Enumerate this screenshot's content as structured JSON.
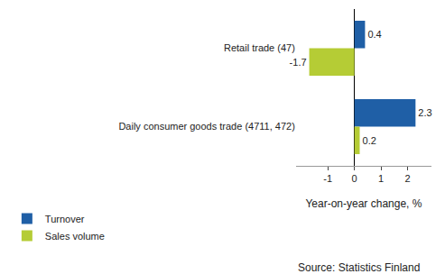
{
  "chart_data": {
    "type": "bar",
    "orientation": "horizontal",
    "categories": [
      "Retail trade (47)",
      "Daily consumer goods trade (4711, 472)"
    ],
    "series": [
      {
        "name": "Turnover",
        "color": "#1f5fa6",
        "values": [
          0.4,
          2.3
        ]
      },
      {
        "name": "Sales volume",
        "color": "#b5cc35",
        "values": [
          -1.7,
          0.2
        ]
      }
    ],
    "x_label": "Year-on-year change, %",
    "xlim": [
      -2.2,
      2.9
    ],
    "xticks": [
      -1,
      0,
      1,
      2
    ],
    "grid": false,
    "data_labels": true,
    "legend": "bottom left",
    "source": "Source: Statistics Finland"
  }
}
